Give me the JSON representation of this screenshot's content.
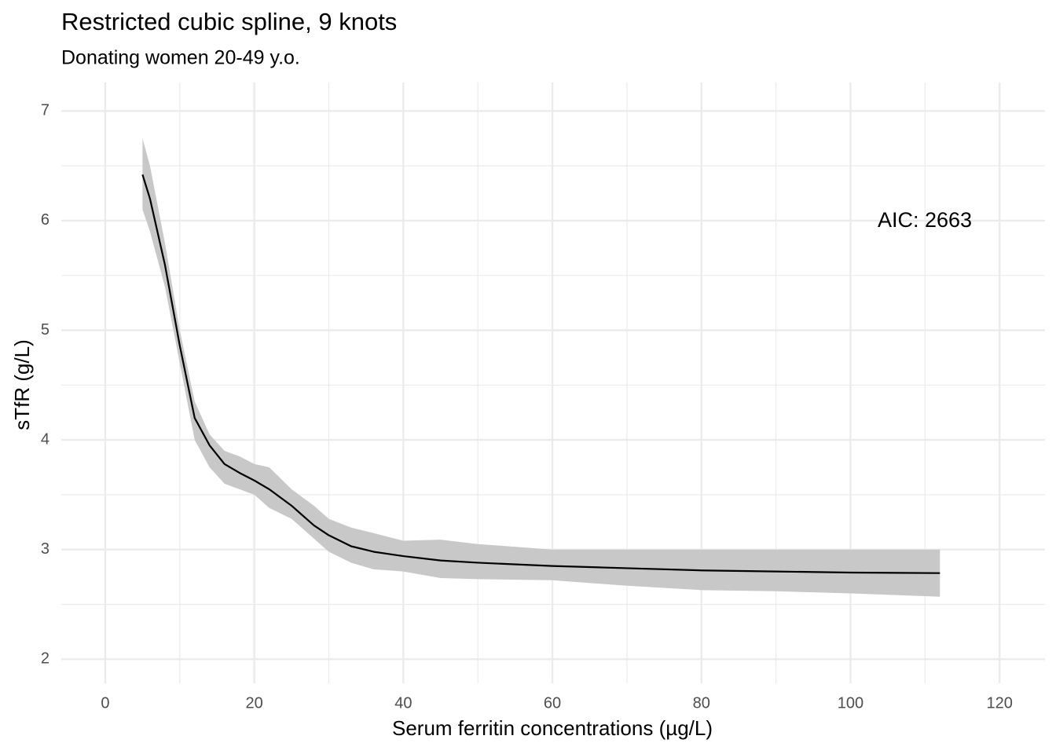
{
  "chart_data": {
    "type": "line",
    "title": "Restricted cubic spline, 9 knots",
    "subtitle": "Donating women 20-49 y.o.",
    "x_label": "Serum ferritin concentrations (µg/L)",
    "y_label": "sTfR (g/L)",
    "annotation": "AIC: 2663",
    "x": [
      5,
      6,
      8,
      10,
      12,
      14,
      16,
      18,
      20,
      22,
      25,
      28,
      30,
      33,
      36,
      40,
      45,
      50,
      60,
      70,
      80,
      90,
      100,
      112
    ],
    "values": [
      6.42,
      6.2,
      5.6,
      4.86,
      4.2,
      3.95,
      3.78,
      3.7,
      3.63,
      3.55,
      3.4,
      3.22,
      3.13,
      3.03,
      2.98,
      2.94,
      2.9,
      2.88,
      2.85,
      2.83,
      2.81,
      2.8,
      2.79,
      2.785
    ],
    "upper": [
      6.75,
      6.5,
      5.8,
      5.0,
      4.35,
      4.05,
      3.9,
      3.85,
      3.78,
      3.75,
      3.55,
      3.4,
      3.28,
      3.2,
      3.15,
      3.08,
      3.09,
      3.05,
      3.0,
      3.0,
      3.0,
      3.0,
      3.0,
      3.0
    ],
    "lower": [
      6.1,
      5.9,
      5.4,
      4.7,
      4.0,
      3.75,
      3.6,
      3.55,
      3.5,
      3.38,
      3.28,
      3.1,
      2.98,
      2.88,
      2.82,
      2.8,
      2.74,
      2.73,
      2.72,
      2.67,
      2.63,
      2.62,
      2.6,
      2.57
    ],
    "color": "#000000",
    "band_color": "#c8c8c8",
    "xlim": [
      -5.9,
      126.1
    ],
    "ylim": [
      1.78,
      7.26
    ],
    "xticks": [
      0,
      20,
      40,
      60,
      80,
      100,
      120
    ],
    "yticks": [
      2,
      3,
      4,
      5,
      6,
      7
    ],
    "xminorticks": [
      10,
      30,
      50,
      70,
      90,
      110
    ],
    "yminorticks": [
      2.5,
      3.5,
      4.5,
      5.5,
      6.5
    ],
    "grid": true
  }
}
